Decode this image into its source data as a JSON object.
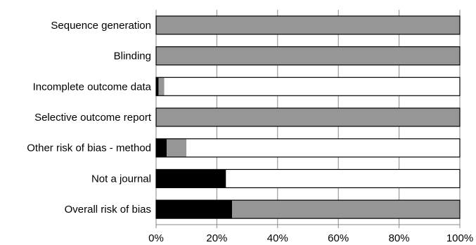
{
  "chart_data": {
    "type": "bar",
    "orientation": "horizontal",
    "stacked": true,
    "categories": [
      "Sequence generation",
      "Blinding",
      "Incomplete outcome data",
      "Selective outcome report",
      "Other risk of bias - method",
      "Not a journal",
      "Overall risk of bias"
    ],
    "series": [
      {
        "key": "black",
        "color": "#000000",
        "values": [
          0,
          0,
          0.8,
          0,
          3.5,
          23,
          25
        ]
      },
      {
        "key": "grey",
        "color": "#969696",
        "values": [
          100,
          100,
          1.9,
          100,
          6.5,
          0,
          75
        ]
      },
      {
        "key": "white",
        "color": "#ffffff",
        "values": [
          0,
          0,
          97.3,
          0,
          90,
          77,
          0
        ]
      }
    ],
    "xlim": [
      0,
      100
    ],
    "xticks": [
      0,
      20,
      40,
      60,
      80,
      100
    ],
    "tick_labels": [
      "0%",
      "20%",
      "40%",
      "60%",
      "80%",
      "100%"
    ],
    "grid": "vertical",
    "legend": "none"
  }
}
